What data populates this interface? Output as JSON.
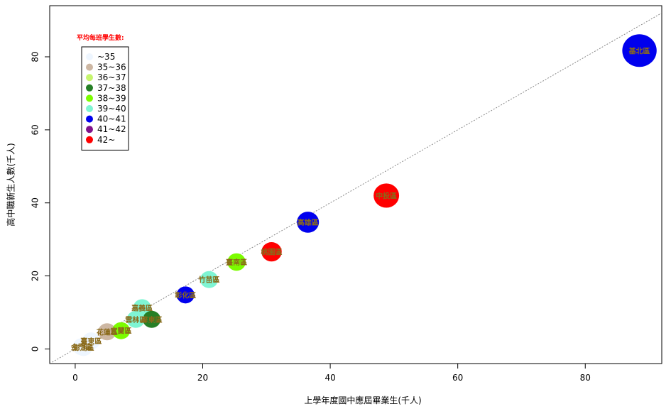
{
  "chart_data": {
    "type": "scatter",
    "title": "",
    "xlabel": "上學年度國中應屆畢業生(千人)",
    "ylabel": "高中職新生人數(千人)",
    "xlim": [
      -4,
      92
    ],
    "ylim": [
      -4,
      94
    ],
    "xticks": [
      "0",
      "20",
      "40",
      "60",
      "80"
    ],
    "yticks": [
      "0",
      "20",
      "40",
      "60",
      "80"
    ],
    "grid": false,
    "reference_line": {
      "style": "dotted",
      "color": "#888888",
      "from": [
        -4,
        -4
      ],
      "to": [
        92,
        92
      ]
    },
    "legend": {
      "title": "平均每班學生數:",
      "placement": "top-left",
      "entries": [
        {
          "label": "~35",
          "color": "#eef6ff"
        },
        {
          "label": "35~36",
          "color": "#cdb7a3"
        },
        {
          "label": "36~37",
          "color": "#c6f56e"
        },
        {
          "label": "37~38",
          "color": "#267f26"
        },
        {
          "label": "38~39",
          "color": "#7cfc00"
        },
        {
          "label": "39~40",
          "color": "#7ff5d3"
        },
        {
          "label": "40~41",
          "color": "#0000ee"
        },
        {
          "label": "41~42",
          "color": "#80128a"
        },
        {
          "label": "42~",
          "color": "#ff0000"
        }
      ]
    },
    "points": [
      {
        "label": "基北區",
        "x": 88.5,
        "y": 81.7,
        "size": 88.5,
        "color": "#0000ee"
      },
      {
        "label": "中投區",
        "x": 48.8,
        "y": 42.0,
        "size": 48.8,
        "color": "#ff0000"
      },
      {
        "label": "高雄區",
        "x": 36.5,
        "y": 34.7,
        "size": 36.5,
        "color": "#0000ee"
      },
      {
        "label": "桃園區",
        "x": 30.8,
        "y": 26.6,
        "size": 30.8,
        "color": "#ff0000"
      },
      {
        "label": "臺南區",
        "x": 25.3,
        "y": 23.8,
        "size": 25.3,
        "color": "#7cfc00"
      },
      {
        "label": "竹苗區",
        "x": 21.0,
        "y": 19.0,
        "size": 21.0,
        "color": "#7ff5d3"
      },
      {
        "label": "彰化區",
        "x": 17.3,
        "y": 14.8,
        "size": 17.3,
        "color": "#0000ee"
      },
      {
        "label": "嘉義區",
        "x": 10.5,
        "y": 11.3,
        "size": 20.0,
        "color": "#7ff5d3"
      },
      {
        "label": "屏東區",
        "x": 12.0,
        "y": 8.1,
        "size": 12.0,
        "color": "#267f26"
      },
      {
        "label": "雲林區",
        "x": 9.5,
        "y": 8.1,
        "size": 9.5,
        "color": "#7ff5d3"
      },
      {
        "label": "宜蘭區",
        "x": 7.2,
        "y": 5.0,
        "size": 7.2,
        "color": "#7cfc00"
      },
      {
        "label": "花蓮區",
        "x": 5.0,
        "y": 4.7,
        "size": 14.0,
        "color": "#cdb7a3"
      },
      {
        "label": "臺東區",
        "x": 2.5,
        "y": 2.2,
        "size": 10.0,
        "color": "#eef6ff"
      },
      {
        "label": "金門區",
        "x": 1.0,
        "y": 0.6,
        "size": 8.0,
        "color": "#eef6ff"
      },
      {
        "label": "澎湖區",
        "x": 1.3,
        "y": 0.4,
        "size": 8.0,
        "color": "#eef6ff"
      }
    ],
    "point_label_color": "#8a6a1a"
  }
}
